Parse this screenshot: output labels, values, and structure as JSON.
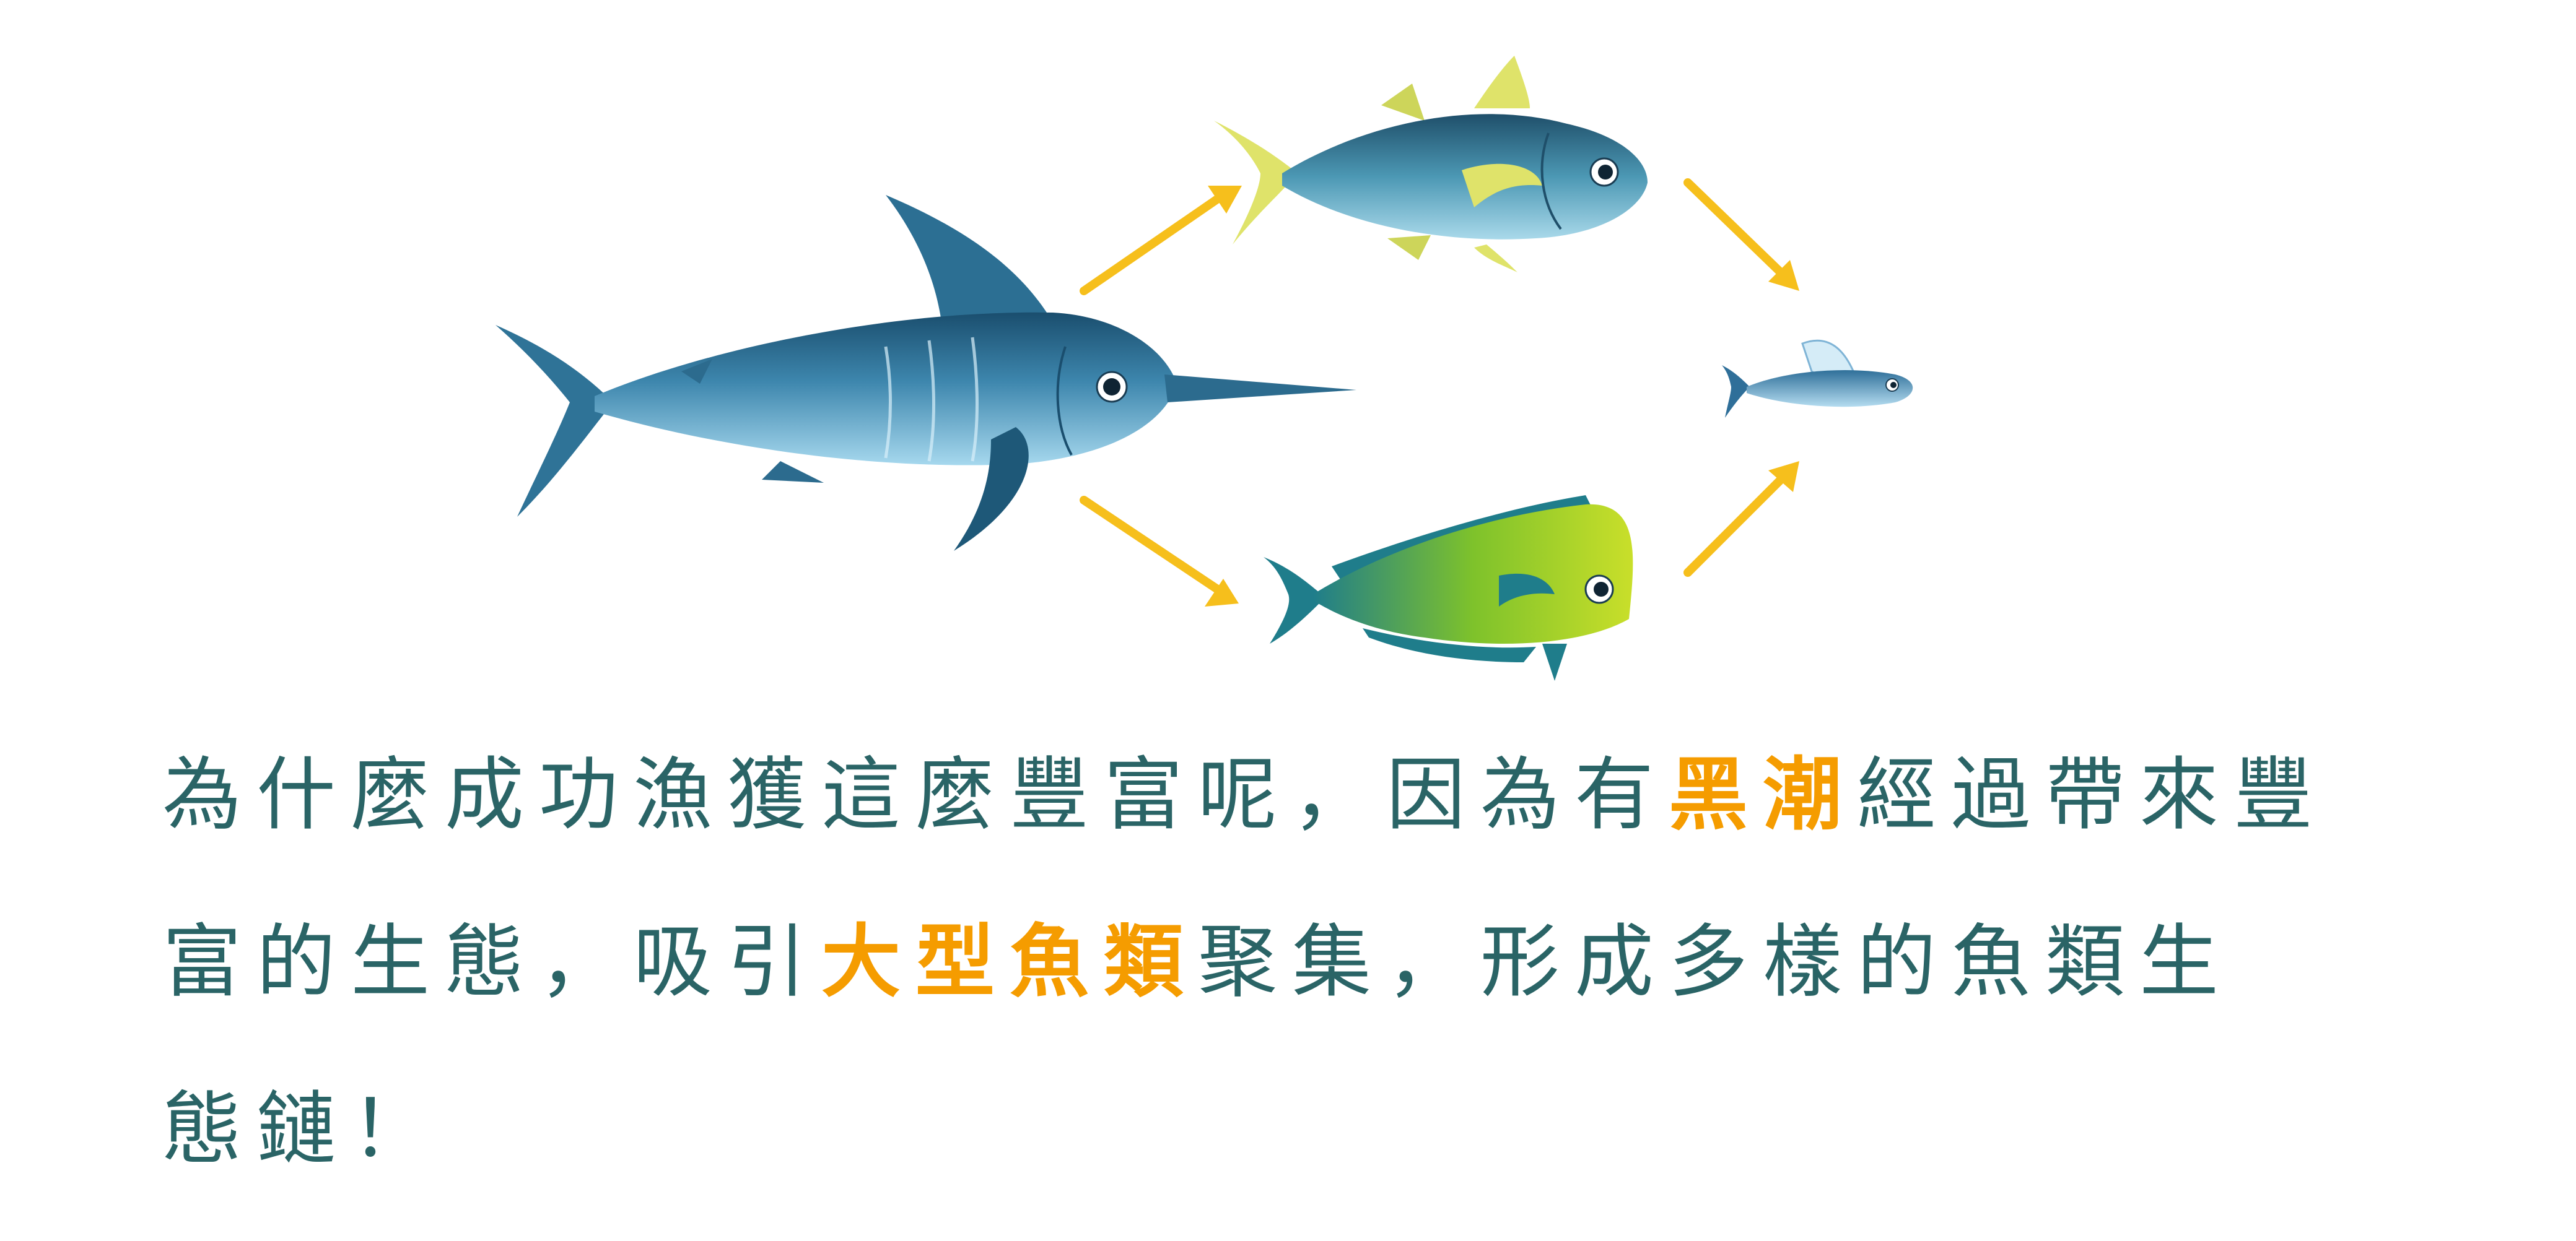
{
  "illustration": {
    "fish": [
      {
        "id": "marlin",
        "icon": "marlin-icon"
      },
      {
        "id": "tuna",
        "icon": "tuna-icon"
      },
      {
        "id": "mahi_mahi",
        "icon": "mahi-mahi-icon"
      },
      {
        "id": "flying_fish",
        "icon": "flying-fish-icon"
      }
    ],
    "arrows": [
      {
        "from": "marlin",
        "to": "tuna"
      },
      {
        "from": "marlin",
        "to": "mahi_mahi"
      },
      {
        "from": "tuna",
        "to": "flying_fish"
      },
      {
        "from": "mahi_mahi",
        "to": "flying_fish"
      }
    ],
    "colors": {
      "arrow": "#f6bf1c",
      "marlin_back": "#1e5a78",
      "marlin_belly": "#8ccbe6",
      "tuna_fin": "#dfe36a",
      "mahi_body": "#7fc52a",
      "flying_fish_body": "#7fb4d6"
    }
  },
  "caption": {
    "line1": {
      "pre": "為什麼成功漁獲這麼豐富呢，因為有",
      "highlight": "黑潮",
      "post": "經過帶來豐"
    },
    "line2": {
      "pre": "富的生態，吸引",
      "highlight": "大型魚類",
      "post": "聚集，形成多樣的魚類生"
    },
    "line3": {
      "text": "態鏈！"
    },
    "colors": {
      "text": "#2a6466",
      "highlight": "#f59c00"
    }
  }
}
